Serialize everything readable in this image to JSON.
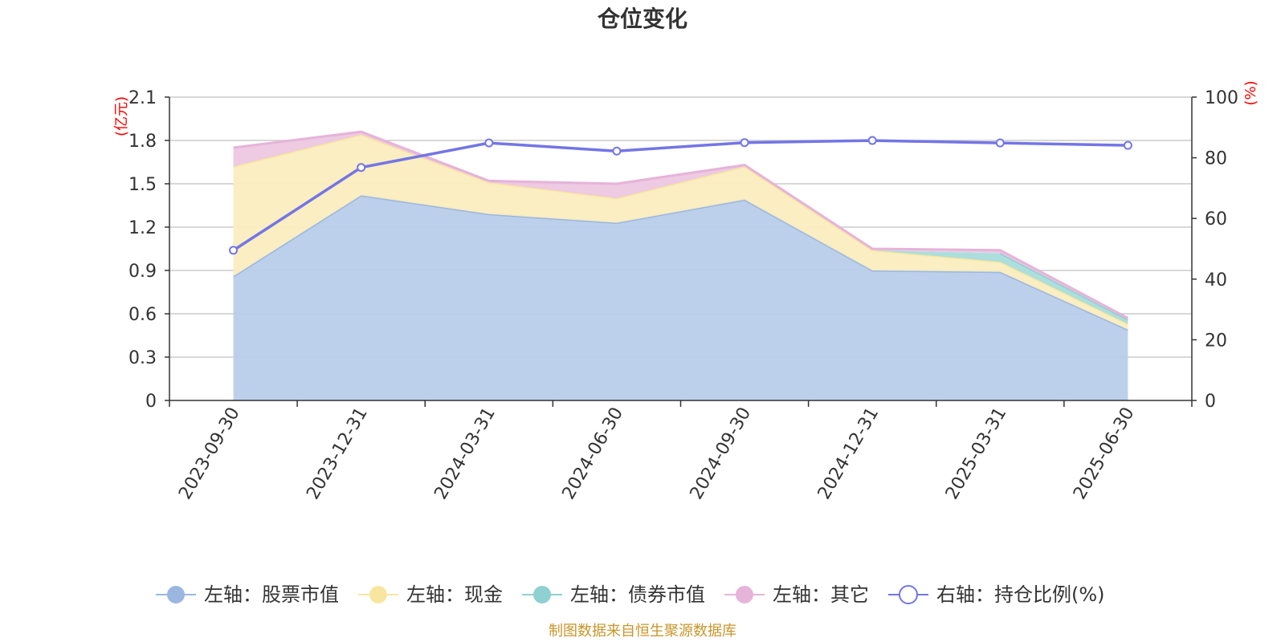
{
  "chart_data": {
    "type": "area",
    "title": "仓位变化",
    "categories": [
      "2023-09-30",
      "2023-12-31",
      "2024-03-31",
      "2024-06-30",
      "2024-09-30",
      "2024-12-31",
      "2025-03-31",
      "2025-06-30"
    ],
    "y_left": {
      "label": "(亿元)",
      "ylim": [
        0,
        2.1
      ],
      "ticks": [
        "0",
        "0.3",
        "0.6",
        "0.9",
        "1.2",
        "1.5",
        "1.8",
        "2.1"
      ]
    },
    "y_right": {
      "label": "(%)",
      "ylim": [
        0,
        100
      ],
      "ticks": [
        "0",
        "20",
        "40",
        "60",
        "80",
        "100"
      ]
    },
    "series": [
      {
        "name": "左轴：股票市值",
        "axis": "left",
        "stacked": true,
        "color": "#9bb6e0",
        "fill": "#b8cdea",
        "values": [
          0.86,
          1.42,
          1.29,
          1.23,
          1.39,
          0.9,
          0.89,
          0.49
        ]
      },
      {
        "name": "左轴：现金",
        "axis": "left",
        "stacked": true,
        "color": "#f8e6a0",
        "fill": "#faedbf",
        "values": [
          0.76,
          0.42,
          0.22,
          0.17,
          0.23,
          0.14,
          0.07,
          0.04
        ]
      },
      {
        "name": "左轴：债券市值",
        "axis": "left",
        "stacked": true,
        "color": "#8fd0d0",
        "fill": "#a9dcdc",
        "values": [
          0,
          0,
          0,
          0,
          0,
          0,
          0.06,
          0.03
        ]
      },
      {
        "name": "左轴：其它",
        "axis": "left",
        "stacked": true,
        "color": "#e6b3d9",
        "fill": "#edc7e2",
        "values": [
          0.13,
          0.02,
          0.01,
          0.1,
          0.01,
          0.01,
          0.02,
          0.01
        ]
      },
      {
        "name": "右轴：持仓比例(%)",
        "axis": "right",
        "type": "line",
        "color": "#7475e6",
        "values": [
          49.5,
          76.8,
          84.9,
          82.2,
          85.0,
          85.7,
          84.9,
          84.1
        ]
      }
    ],
    "legend_position": "bottom",
    "grid": true
  },
  "footer": {
    "source": "制图数据来自恒生聚源数据库"
  }
}
